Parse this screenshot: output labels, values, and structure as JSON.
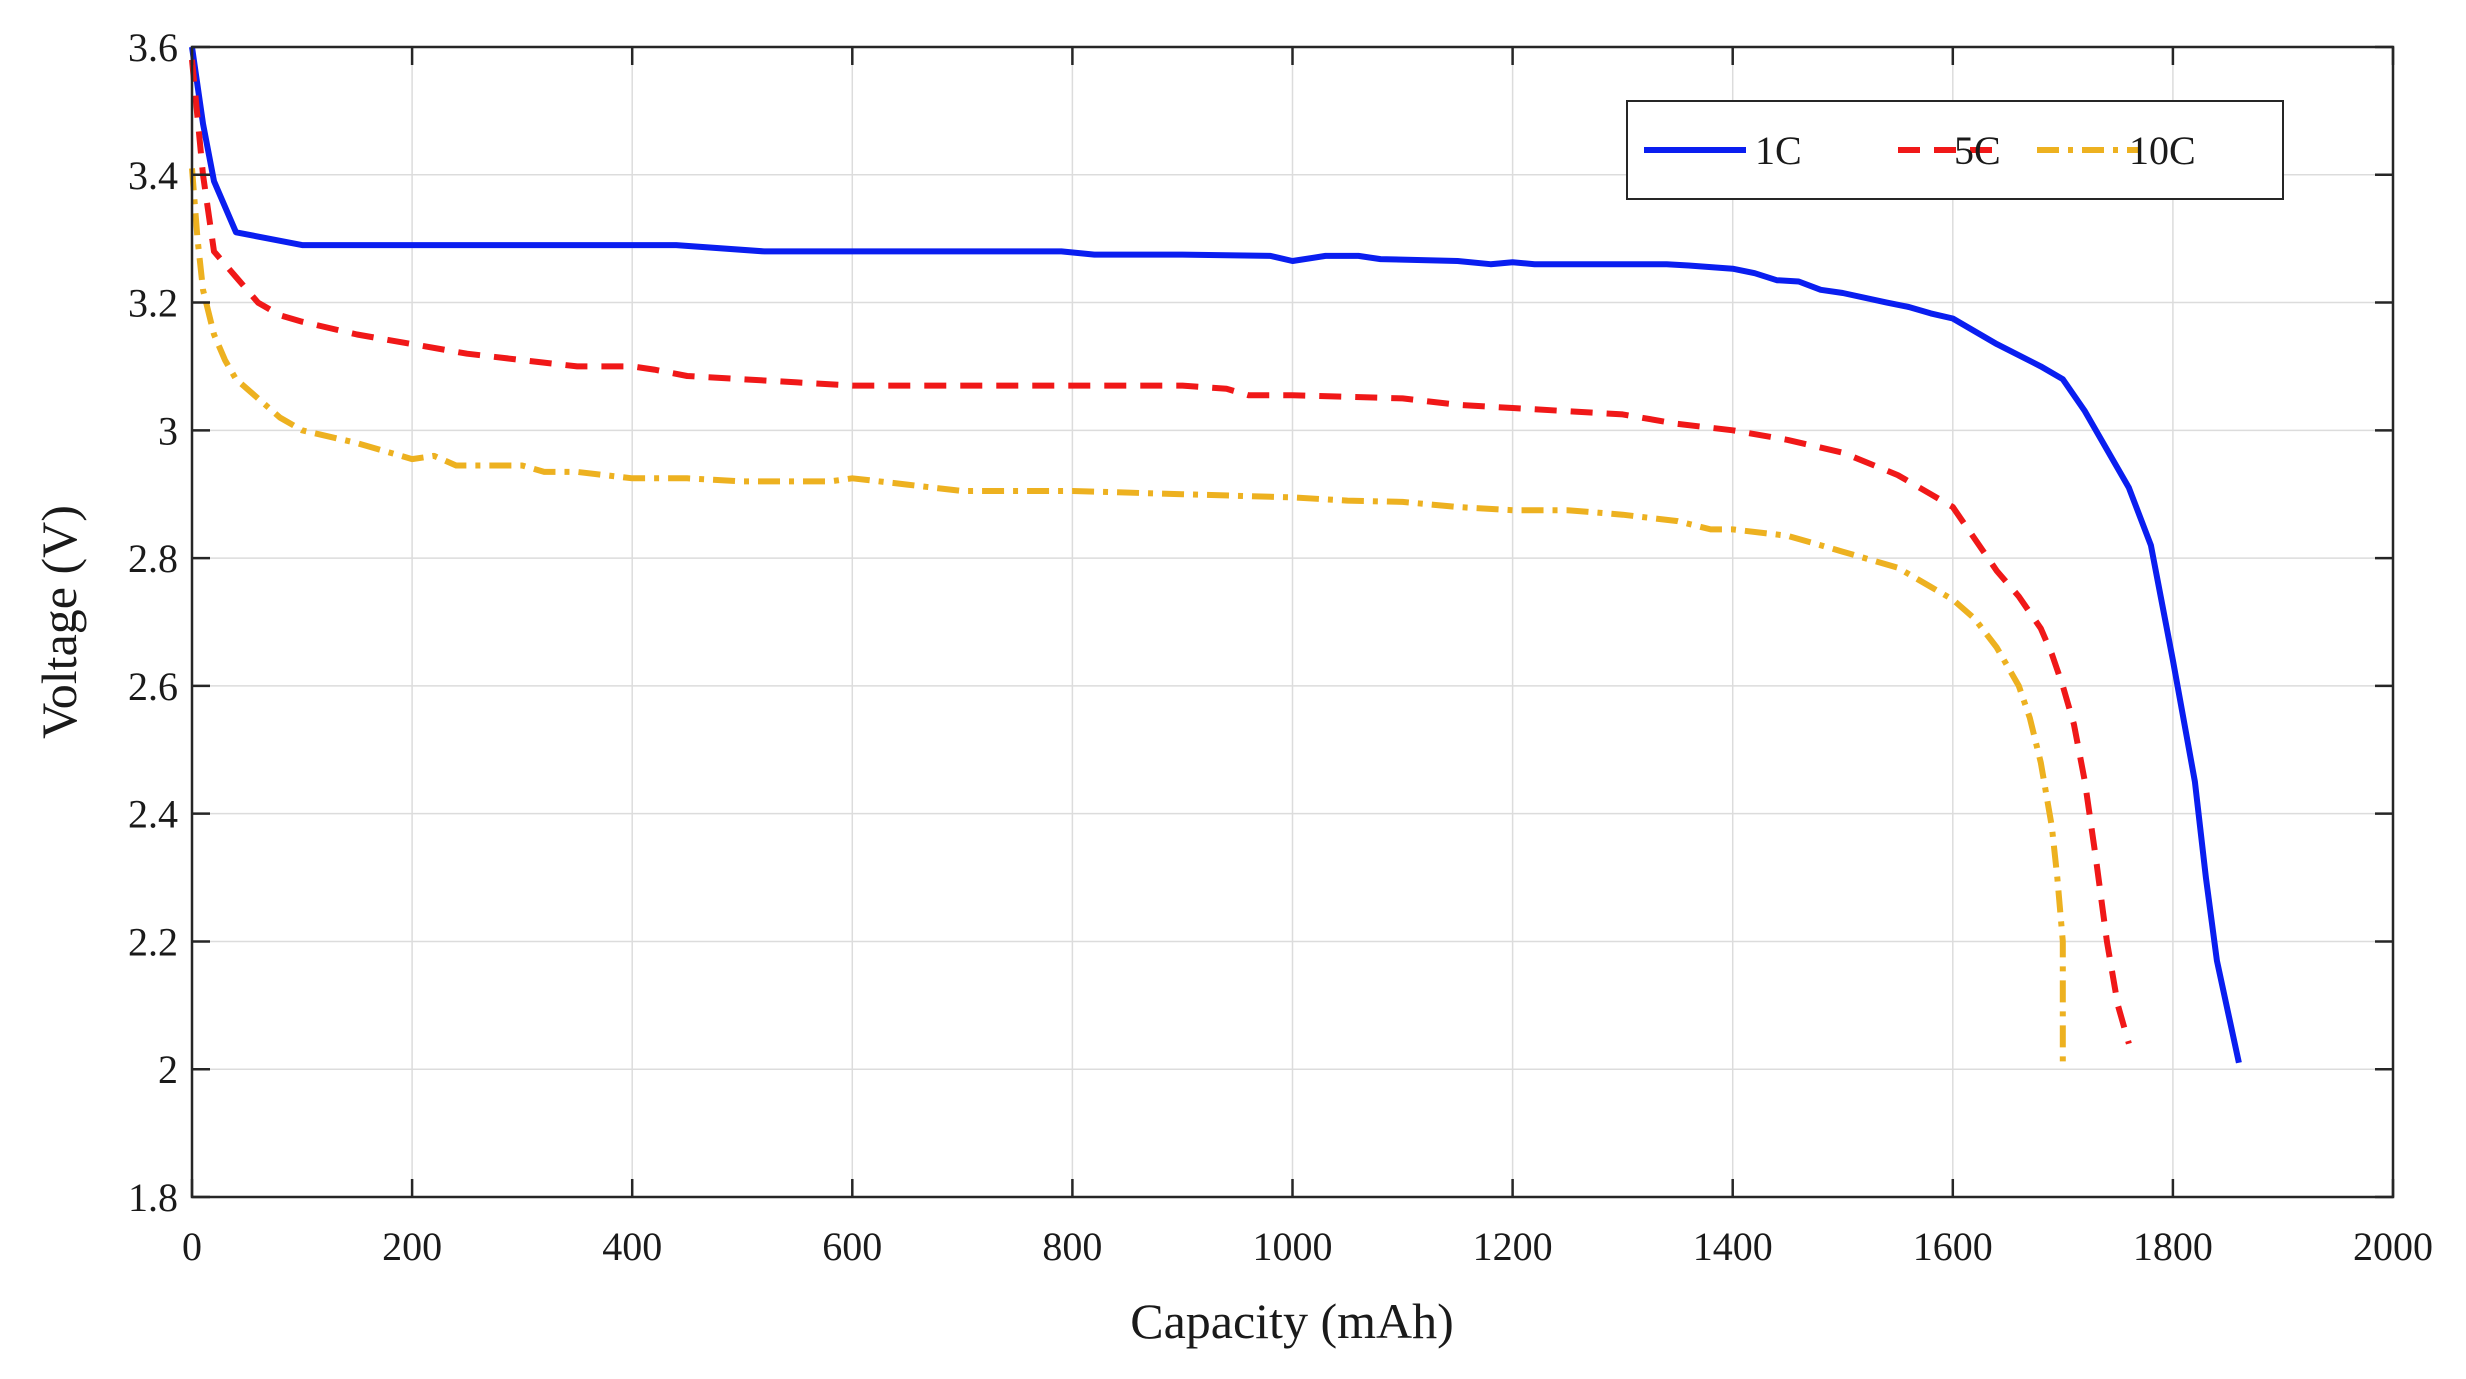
{
  "chart_data": {
    "type": "line",
    "title": "",
    "xlabel": "Capacity (mAh)",
    "ylabel": "Voltage (V)",
    "xlim": [
      0,
      2000
    ],
    "ylim": [
      1.8,
      3.6
    ],
    "xticks": [
      0,
      200,
      400,
      600,
      800,
      1000,
      1200,
      1400,
      1600,
      1800,
      2000
    ],
    "yticks": [
      1.8,
      2,
      2.2,
      2.4,
      2.6,
      2.8,
      3,
      3.2,
      3.4,
      3.6
    ],
    "ytick_labels": [
      "1.8",
      "2",
      "2.2",
      "2.4",
      "2.6",
      "2.8",
      "3",
      "3.2",
      "3.4",
      "3.6"
    ],
    "grid": true,
    "legend_position": "top-right",
    "series": [
      {
        "name": "1C",
        "color": "#0a1ef0",
        "dash": "solid",
        "x": [
          0,
          10,
          20,
          40,
          70,
          100,
          150,
          200,
          300,
          440,
          520,
          600,
          700,
          790,
          820,
          900,
          980,
          1000,
          1030,
          1060,
          1080,
          1150,
          1180,
          1200,
          1220,
          1300,
          1340,
          1360,
          1400,
          1420,
          1440,
          1460,
          1480,
          1500,
          1540,
          1560,
          1580,
          1600,
          1640,
          1680,
          1700,
          1720,
          1740,
          1760,
          1780,
          1800,
          1820,
          1830,
          1840,
          1850,
          1860
        ],
        "y": [
          3.6,
          3.48,
          3.39,
          3.31,
          3.3,
          3.29,
          3.29,
          3.29,
          3.29,
          3.29,
          3.28,
          3.28,
          3.28,
          3.28,
          3.275,
          3.275,
          3.273,
          3.265,
          3.273,
          3.273,
          3.268,
          3.265,
          3.26,
          3.263,
          3.26,
          3.26,
          3.26,
          3.258,
          3.253,
          3.246,
          3.235,
          3.233,
          3.22,
          3.215,
          3.2,
          3.193,
          3.183,
          3.175,
          3.135,
          3.1,
          3.08,
          3.03,
          2.97,
          2.91,
          2.82,
          2.64,
          2.45,
          2.3,
          2.17,
          2.09,
          2.01
        ]
      },
      {
        "name": "5C",
        "color": "#f01818",
        "dash": "dashed",
        "x": [
          0,
          10,
          20,
          40,
          60,
          80,
          100,
          150,
          200,
          250,
          300,
          350,
          400,
          420,
          450,
          500,
          550,
          600,
          650,
          700,
          800,
          900,
          940,
          960,
          1000,
          1100,
          1150,
          1200,
          1250,
          1300,
          1350,
          1400,
          1450,
          1500,
          1550,
          1580,
          1600,
          1620,
          1640,
          1660,
          1680,
          1690,
          1700,
          1710,
          1720,
          1730,
          1740,
          1750,
          1760
        ],
        "y": [
          3.58,
          3.4,
          3.28,
          3.24,
          3.2,
          3.18,
          3.17,
          3.15,
          3.135,
          3.12,
          3.11,
          3.1,
          3.1,
          3.095,
          3.085,
          3.08,
          3.075,
          3.07,
          3.07,
          3.07,
          3.07,
          3.07,
          3.065,
          3.055,
          3.055,
          3.05,
          3.04,
          3.035,
          3.03,
          3.025,
          3.01,
          3.0,
          2.985,
          2.965,
          2.93,
          2.9,
          2.88,
          2.83,
          2.78,
          2.74,
          2.69,
          2.65,
          2.6,
          2.54,
          2.45,
          2.33,
          2.2,
          2.1,
          2.04
        ]
      },
      {
        "name": "10C",
        "color": "#edb120",
        "dash": "dashdot",
        "x": [
          0,
          5,
          10,
          20,
          30,
          40,
          60,
          80,
          100,
          150,
          200,
          220,
          240,
          300,
          320,
          350,
          400,
          450,
          500,
          580,
          600,
          650,
          700,
          800,
          900,
          1000,
          1050,
          1100,
          1150,
          1200,
          1250,
          1300,
          1350,
          1380,
          1400,
          1450,
          1500,
          1550,
          1580,
          1600,
          1620,
          1640,
          1660,
          1670,
          1680,
          1690,
          1695,
          1700,
          1700
        ],
        "y": [
          3.41,
          3.3,
          3.22,
          3.15,
          3.11,
          3.08,
          3.05,
          3.02,
          3.0,
          2.98,
          2.955,
          2.96,
          2.945,
          2.945,
          2.935,
          2.935,
          2.925,
          2.925,
          2.92,
          2.92,
          2.925,
          2.915,
          2.905,
          2.905,
          2.9,
          2.895,
          2.89,
          2.888,
          2.88,
          2.875,
          2.875,
          2.868,
          2.858,
          2.845,
          2.845,
          2.835,
          2.81,
          2.785,
          2.755,
          2.735,
          2.705,
          2.66,
          2.6,
          2.55,
          2.48,
          2.38,
          2.3,
          2.2,
          2.0
        ]
      }
    ]
  }
}
